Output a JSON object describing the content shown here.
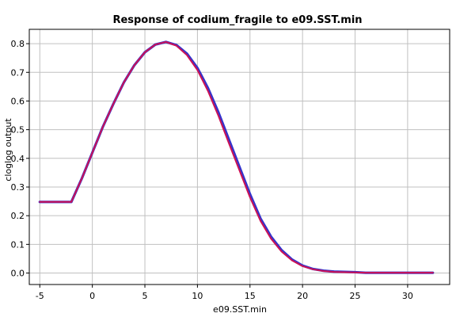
{
  "chart_data": {
    "type": "line",
    "title": "Response of codium_fragile to e09.SST.min",
    "xlabel": "e09.SST.min",
    "ylabel": "cloglog output",
    "xlim": [
      -6,
      34
    ],
    "ylim": [
      -0.04,
      0.85
    ],
    "x_ticks": [
      -5,
      0,
      5,
      10,
      15,
      20,
      25,
      30
    ],
    "y_ticks": [
      0.0,
      0.1,
      0.2,
      0.3,
      0.4,
      0.5,
      0.6,
      0.7,
      0.8
    ],
    "x_tick_labels": [
      "-5",
      "0",
      "5",
      "10",
      "15",
      "20",
      "25",
      "30"
    ],
    "y_tick_labels": [
      "0.0",
      "0.1",
      "0.2",
      "0.3",
      "0.4",
      "0.5",
      "0.6",
      "0.7",
      "0.8"
    ],
    "grid": true,
    "series": [
      {
        "color": "#3333cc",
        "x": [
          -5,
          -2,
          -1,
          0,
          1,
          2,
          3,
          4,
          5,
          6,
          7,
          8,
          9,
          10,
          11,
          12,
          13,
          14,
          15,
          16,
          17,
          18,
          19,
          20,
          21,
          22,
          23,
          24,
          25,
          26,
          27,
          28,
          29,
          30,
          31,
          32.4
        ],
        "y": [
          0.248,
          0.248,
          0.33,
          0.42,
          0.51,
          0.59,
          0.665,
          0.725,
          0.77,
          0.797,
          0.806,
          0.795,
          0.765,
          0.715,
          0.645,
          0.56,
          0.465,
          0.37,
          0.275,
          0.19,
          0.127,
          0.08,
          0.047,
          0.026,
          0.014,
          0.008,
          0.005,
          0.004,
          0.003,
          0.001,
          0.001,
          0.001,
          0.001,
          0.001,
          0.001,
          0.001
        ]
      },
      {
        "color": "#cc1155",
        "x": [
          -5,
          -2,
          -1,
          0,
          1,
          2,
          3,
          4,
          5,
          6,
          7,
          8,
          9,
          10,
          11,
          12,
          13,
          14,
          15,
          16,
          17,
          18,
          19,
          20,
          21,
          22,
          23,
          24,
          25,
          26,
          27,
          28,
          29,
          30,
          31,
          32.4
        ],
        "y": [
          0.248,
          0.248,
          0.33,
          0.42,
          0.51,
          0.59,
          0.665,
          0.725,
          0.77,
          0.797,
          0.806,
          0.793,
          0.76,
          0.708,
          0.635,
          0.548,
          0.452,
          0.358,
          0.264,
          0.182,
          0.12,
          0.075,
          0.044,
          0.024,
          0.013,
          0.007,
          0.004,
          0.003,
          0.002,
          0.001,
          0.001,
          0.001,
          0.001,
          0.001,
          0.001,
          0.001
        ]
      }
    ]
  }
}
